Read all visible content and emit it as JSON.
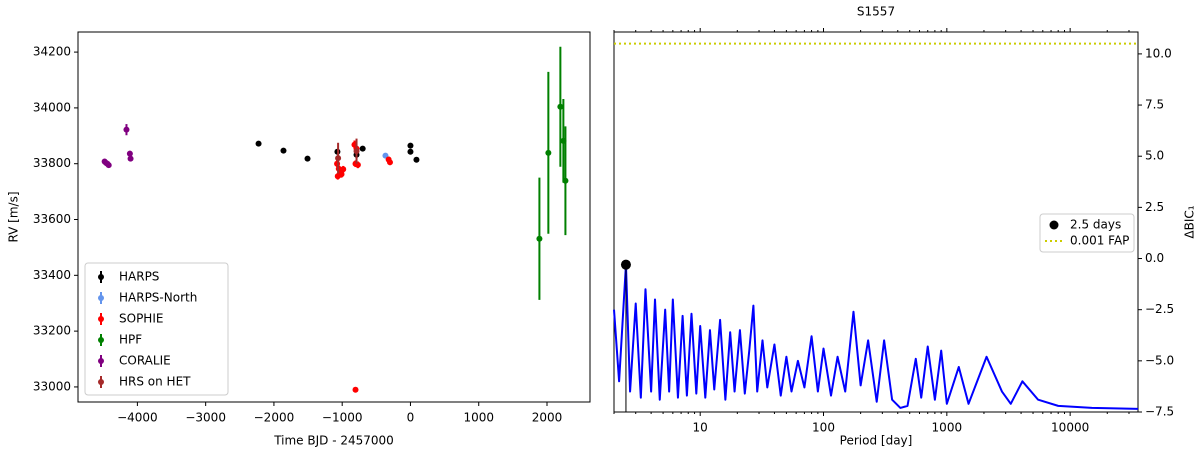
{
  "chart_data": [
    {
      "type": "scatter",
      "xlabel": "Time BJD - 2457000",
      "ylabel": "RV [m/s]",
      "xlim": [
        -4870,
        2630
      ],
      "ylim": [
        32946,
        34272
      ],
      "xticks": [
        {
          "value": -4000,
          "label": "−4000"
        },
        {
          "value": -3000,
          "label": "−3000"
        },
        {
          "value": -2000,
          "label": "−2000"
        },
        {
          "value": -1000,
          "label": "−1000"
        },
        0,
        1000,
        2000
      ],
      "yticks": [
        33000,
        33200,
        33400,
        33600,
        33800,
        34000,
        34200
      ],
      "legend": "lower left",
      "series": [
        {
          "name": "HARPS",
          "color": "#000000",
          "x": [
            -2225,
            -1860,
            -1508,
            -1070,
            -790,
            -700,
            0,
            0,
            88
          ],
          "values": [
            33872,
            33847,
            33818,
            33843,
            33832,
            33854,
            33865,
            33843,
            33814
          ],
          "errors": [
            8,
            8,
            8,
            8,
            8,
            8,
            8,
            8,
            8
          ]
        },
        {
          "name": "HARPS-North",
          "color": "#6495ed",
          "x": [
            -366
          ],
          "values": [
            33829
          ],
          "errors": [
            8
          ]
        },
        {
          "name": "SOPHIE",
          "color": "#ff0000",
          "x": [
            -1075,
            -1050,
            -1030,
            -1010,
            -985,
            -1065,
            -820,
            -790,
            -805,
            -770,
            -320,
            -300,
            -805
          ],
          "values": [
            33800,
            33782,
            33775,
            33762,
            33780,
            33755,
            33868,
            33854,
            33800,
            33796,
            33815,
            33805,
            32990
          ],
          "errors": [
            12,
            12,
            12,
            12,
            12,
            12,
            15,
            15,
            12,
            12,
            10,
            10,
            6
          ]
        },
        {
          "name": "HPF",
          "color": "#008000",
          "x": [
            1889,
            2020,
            2196,
            2240,
            2270
          ],
          "values": [
            33531,
            33839,
            34004,
            33882,
            33739
          ],
          "errors": [
            219,
            290,
            215,
            150,
            195
          ]
        },
        {
          "name": "CORALIE",
          "color": "#800080",
          "x": [
            -4480,
            -4460,
            -4440,
            -4420,
            -4160,
            -4110,
            -4100
          ],
          "values": [
            33808,
            33803,
            33800,
            33795,
            33922,
            33836,
            33818
          ],
          "errors": [
            8,
            8,
            8,
            8,
            20,
            10,
            10
          ]
        },
        {
          "name": "HRS on HET",
          "color": "#a52a2a",
          "x": [
            -1060,
            -790
          ],
          "values": [
            33820,
            33845
          ],
          "errors": [
            55,
            45
          ]
        }
      ]
    },
    {
      "type": "line",
      "title": "S1557",
      "xlabel": "Period [day]",
      "ylabel": "ΔBIC₁",
      "xscale": "log",
      "xlim": [
        2.0,
        35500
      ],
      "ylim": [
        -7.5,
        11.07
      ],
      "xticks": [
        10,
        100,
        1000,
        10000
      ],
      "yticks": [
        {
          "value": -7.5,
          "label": "−7.5"
        },
        {
          "value": -5.0,
          "label": "−5.0"
        },
        {
          "value": -2.5,
          "label": "−2.5"
        },
        {
          "value": 0,
          "label": "0.0"
        },
        2.5,
        {
          "value": 5,
          "label": "5.0"
        },
        7.5,
        {
          "value": 10,
          "label": "10.0"
        }
      ],
      "color": "#0000ff",
      "legend": "center right",
      "x": [
        2.0,
        2.2,
        2.5,
        2.7,
        3.0,
        3.3,
        3.6,
        4.0,
        4.3,
        4.7,
        5.2,
        5.6,
        6.0,
        6.6,
        7.2,
        7.8,
        8.5,
        9.3,
        10,
        11,
        12,
        13,
        14.5,
        16,
        17.5,
        19,
        21,
        23,
        25,
        27,
        29,
        32,
        35,
        40,
        45,
        50,
        55,
        62,
        70,
        80,
        90,
        100,
        115,
        130,
        150,
        175,
        200,
        230,
        270,
        310,
        360,
        420,
        480,
        560,
        620,
        700,
        800,
        900,
        1000,
        1250,
        1500,
        2100,
        2800,
        3300,
        4100,
        5500,
        8000,
        15000,
        35500
      ],
      "values": [
        -2.5,
        -6,
        -0.3,
        -6.5,
        -2.2,
        -6.8,
        -1.5,
        -6.5,
        -2.0,
        -6.9,
        -2.5,
        -6.5,
        -2.0,
        -6.8,
        -2.8,
        -6.7,
        -2.7,
        -6.6,
        -3.3,
        -6.8,
        -3.5,
        -6.4,
        -3.0,
        -6.9,
        -3.6,
        -6.5,
        -3.5,
        -6.6,
        -4.5,
        -2.3,
        -6.5,
        -4.0,
        -6.3,
        -4.2,
        -6.7,
        -4.8,
        -6.5,
        -5.0,
        -6.3,
        -3.8,
        -6.5,
        -4.4,
        -6.7,
        -4.8,
        -6.5,
        -2.6,
        -6.2,
        -4.0,
        -7.0,
        -4.0,
        -6.9,
        -7.3,
        -7.2,
        -4.9,
        -6.8,
        -4.3,
        -6.9,
        -4.5,
        -7.1,
        -5.3,
        -7.1,
        -4.8,
        -6.5,
        -7.1,
        -6.0,
        -6.9,
        -7.2,
        -7.3,
        -7.35
      ],
      "peak": {
        "name": "2.5 days",
        "x": 2.5,
        "value": -0.3,
        "color": "#000000"
      },
      "fap": {
        "name": "0.001 FAP",
        "value": 10.5,
        "color": "#cccc00"
      }
    }
  ]
}
